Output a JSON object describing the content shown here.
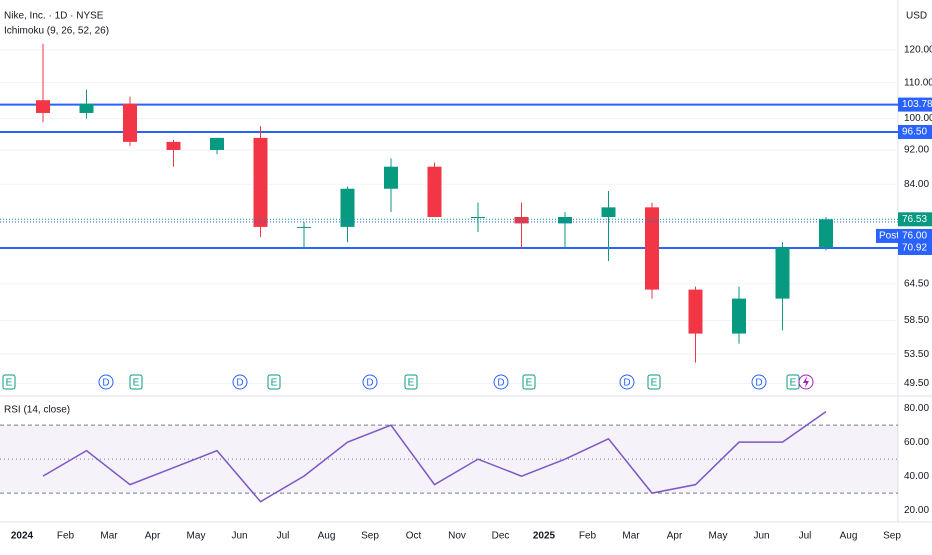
{
  "chart_data": [
    {
      "type": "candlestick",
      "title": "Nike, Inc. · 1D · NYSE",
      "indicator": "Ichimoku (9, 26, 52, 26)",
      "currency": "USD",
      "categories": [
        "2024",
        "Feb",
        "Mar",
        "Apr",
        "May",
        "Jun",
        "Jul",
        "Aug",
        "Sep",
        "Oct",
        "Nov",
        "Dec",
        "2025",
        "Feb",
        "Mar",
        "Apr",
        "May",
        "Jun",
        "Jul",
        "Aug",
        "Sep"
      ],
      "open": [
        105,
        101.5,
        104,
        94,
        92,
        95,
        75,
        75,
        83,
        88,
        77,
        77,
        75.7,
        77,
        79,
        63.5,
        56.5,
        62,
        71,
        null,
        null
      ],
      "high": [
        122,
        108,
        106,
        94.5,
        95,
        98,
        76,
        83.5,
        90,
        89,
        80,
        80,
        78,
        82.5,
        80,
        64,
        64,
        72,
        77,
        null,
        null
      ],
      "low": [
        99,
        100,
        93,
        88,
        91,
        73,
        70.7,
        72,
        78,
        77,
        74,
        70.8,
        70.8,
        68.5,
        62,
        52.3,
        55,
        57,
        70.5,
        null,
        null
      ],
      "close": [
        101.5,
        104,
        94,
        92,
        95,
        75,
        75,
        83,
        88,
        77,
        77,
        75.7,
        77,
        79,
        63.5,
        56.5,
        62,
        71,
        76.53,
        null,
        null
      ],
      "up_color": "#089981",
      "down_color": "#f23645",
      "log_scale": true,
      "ylim": [
        48,
        137
      ],
      "yticks": [
        {
          "value": 120,
          "label": "120.00"
        },
        {
          "value": 110,
          "label": "110.00"
        },
        {
          "value": 100,
          "label": "100.00"
        },
        {
          "value": 92,
          "label": "92.00"
        },
        {
          "value": 84,
          "label": "84.00"
        },
        {
          "value": 64.5,
          "label": "64.50"
        },
        {
          "value": 58.5,
          "label": "58.50"
        },
        {
          "value": 53.5,
          "label": "53.50"
        },
        {
          "value": 49.5,
          "label": "49.50"
        }
      ],
      "hlines": [
        {
          "value": 103.78,
          "label": "103.78"
        },
        {
          "value": 96.5,
          "label": "96.50"
        },
        {
          "value": 70.92,
          "label": "70.92"
        }
      ],
      "hline_color": "#2962ff",
      "last_price": {
        "value": 76.53,
        "label": "76.53"
      },
      "post_price": {
        "value": 76,
        "label": "76.00",
        "tag": "Post"
      },
      "events": [
        "E",
        "D",
        "E",
        "D",
        "E",
        "D",
        "E",
        "D",
        "E",
        "D",
        "E",
        "D",
        "E"
      ]
    },
    {
      "type": "line",
      "title": "RSI (14, close)",
      "color": "#7e57c2",
      "values": [
        40,
        55,
        35,
        45,
        55,
        25,
        40,
        60,
        70,
        35,
        50,
        40,
        50,
        62,
        30,
        35,
        60,
        60,
        78,
        null,
        null
      ],
      "ylim": [
        13,
        86
      ],
      "yticks": [
        {
          "value": 80,
          "label": "80.00"
        },
        {
          "value": 60,
          "label": "60.00"
        },
        {
          "value": 40,
          "label": "40.00"
        },
        {
          "value": 20,
          "label": "20.00"
        }
      ],
      "bands": [
        70,
        50,
        30
      ]
    }
  ]
}
